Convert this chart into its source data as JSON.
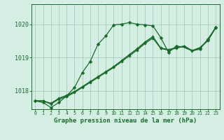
{
  "background_color": "#d4eee4",
  "grid_color": "#a0c8b0",
  "line_color": "#1a6b2a",
  "title": "Graphe pression niveau de la mer (hPa)",
  "title_fontsize": 6.5,
  "xlim": [
    -0.5,
    23.5
  ],
  "ylim": [
    1017.45,
    1020.6
  ],
  "yticks": [
    1018,
    1019,
    1020
  ],
  "xticks": [
    0,
    1,
    2,
    3,
    4,
    5,
    6,
    7,
    8,
    9,
    10,
    11,
    12,
    13,
    14,
    15,
    16,
    17,
    18,
    19,
    20,
    21,
    22,
    23
  ],
  "curve1_x": [
    0,
    1,
    2,
    3,
    4,
    5,
    6,
    7,
    8,
    9,
    10,
    11,
    12,
    13,
    14,
    15,
    16,
    17,
    18,
    19,
    20,
    21,
    22,
    23
  ],
  "curve1_y": [
    1017.7,
    1017.65,
    1017.5,
    1017.65,
    1017.85,
    1018.1,
    1018.55,
    1018.88,
    1019.4,
    1019.65,
    1019.98,
    1020.0,
    1020.05,
    1020.0,
    1019.98,
    1019.95,
    1019.6,
    1019.15,
    1019.35,
    1019.3,
    1019.2,
    1019.25,
    1019.55,
    1019.9
  ],
  "curve1_marker_x": [
    0,
    1,
    2,
    3,
    4,
    5,
    6,
    7,
    8,
    9,
    10,
    11,
    12,
    13,
    14,
    15,
    16,
    17,
    18,
    21,
    22,
    23
  ],
  "curve1_marker_y": [
    1017.7,
    1017.65,
    1017.5,
    1017.65,
    1017.85,
    1018.1,
    1018.55,
    1018.88,
    1019.4,
    1019.65,
    1019.98,
    1020.0,
    1020.05,
    1020.0,
    1019.98,
    1019.95,
    1019.6,
    1019.15,
    1019.35,
    1019.25,
    1019.55,
    1019.9
  ],
  "curve2_x": [
    0,
    1,
    2,
    3,
    4,
    5,
    6,
    7,
    8,
    9,
    10,
    11,
    12,
    13,
    14,
    15,
    16,
    17,
    18,
    19,
    20,
    21,
    22,
    23
  ],
  "curve2_y": [
    1017.7,
    1017.7,
    1017.6,
    1017.75,
    1017.82,
    1017.95,
    1018.1,
    1018.25,
    1018.4,
    1018.55,
    1018.7,
    1018.87,
    1019.05,
    1019.22,
    1019.42,
    1019.58,
    1019.27,
    1019.22,
    1019.28,
    1019.33,
    1019.2,
    1019.28,
    1019.5,
    1019.88
  ],
  "curve3_x": [
    0,
    1,
    2,
    3,
    4,
    5,
    6,
    7,
    8,
    9,
    10,
    11,
    12,
    13,
    14,
    15,
    16,
    17,
    18,
    19,
    20,
    21,
    22,
    23
  ],
  "curve3_y": [
    1017.7,
    1017.7,
    1017.62,
    1017.77,
    1017.85,
    1017.97,
    1018.12,
    1018.27,
    1018.42,
    1018.57,
    1018.72,
    1018.9,
    1019.08,
    1019.25,
    1019.45,
    1019.62,
    1019.28,
    1019.23,
    1019.3,
    1019.34,
    1019.21,
    1019.29,
    1019.51,
    1019.89
  ],
  "curve4_x": [
    0,
    1,
    2,
    3,
    4,
    5,
    6,
    7,
    8,
    9,
    10,
    11,
    12,
    13,
    14,
    15,
    16,
    17,
    18,
    19,
    20,
    21,
    22,
    23
  ],
  "curve4_y": [
    1017.7,
    1017.7,
    1017.63,
    1017.78,
    1017.87,
    1017.98,
    1018.13,
    1018.28,
    1018.43,
    1018.58,
    1018.73,
    1018.91,
    1019.09,
    1019.27,
    1019.47,
    1019.63,
    1019.29,
    1019.24,
    1019.3,
    1019.35,
    1019.21,
    1019.3,
    1019.52,
    1019.9
  ]
}
